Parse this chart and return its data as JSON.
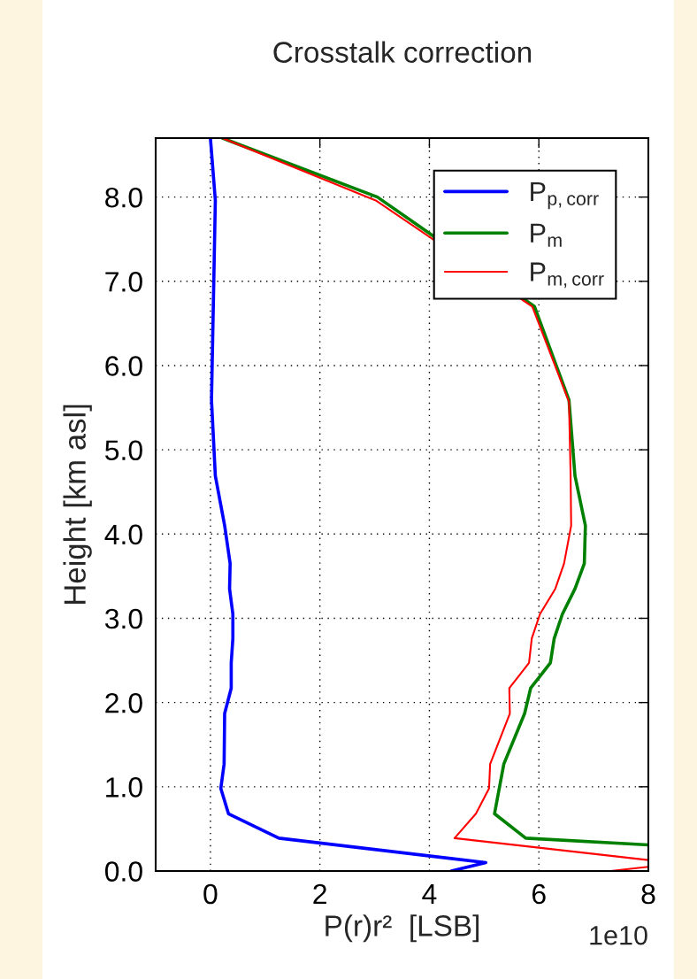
{
  "chart_data": {
    "type": "line",
    "title": "Crosstalk correction",
    "xlabel": "P(r)r²  [LSB]",
    "ylabel": "Height [km asl]",
    "annotations": [
      "1e10"
    ],
    "xlim": [
      -1,
      8
    ],
    "xticks": [
      0,
      2,
      4,
      6,
      8
    ],
    "ylim": [
      0,
      8.7
    ],
    "yticks": [
      {
        "value": 0,
        "label": "0.0"
      },
      {
        "value": 1,
        "label": "1.0"
      },
      {
        "value": 2,
        "label": "2.0"
      },
      {
        "value": 3,
        "label": "3.0"
      },
      {
        "value": 4,
        "label": "4.0"
      },
      {
        "value": 5,
        "label": "5.0"
      },
      {
        "value": 6,
        "label": "6.0"
      },
      {
        "value": 7,
        "label": "7.0"
      },
      {
        "value": 8,
        "label": "8.0"
      }
    ],
    "grid": true,
    "legend": "top right",
    "line_style": "solid",
    "marker": "none",
    "series": [
      {
        "name": "P$_{p,corr}$",
        "color": "#0000ff",
        "x": [
          0.0,
          0.09,
          0.02,
          0.09,
          0.26,
          0.36,
          0.35,
          0.41,
          0.41,
          0.38,
          0.38,
          0.26,
          0.25,
          0.19,
          0.33,
          1.25,
          5.03,
          4.4
        ],
        "values": [
          8.7,
          7.96,
          5.59,
          4.69,
          4.1,
          3.65,
          3.35,
          3.05,
          2.76,
          2.47,
          2.17,
          1.87,
          1.27,
          0.98,
          0.68,
          0.39,
          0.1,
          0.0
        ]
      },
      {
        "name": "P$_{m}$",
        "color": "#008000",
        "x": [
          0.22,
          3.05,
          5.92,
          6.55,
          6.66,
          6.85,
          6.83,
          6.66,
          6.43,
          6.28,
          6.21,
          5.85,
          5.74,
          5.36,
          5.19,
          5.76,
          8.0
        ],
        "values": [
          8.7,
          8.0,
          6.7,
          5.59,
          4.69,
          4.1,
          3.65,
          3.35,
          3.05,
          2.76,
          2.47,
          2.17,
          1.87,
          1.27,
          0.68,
          0.39,
          0.31
        ]
      },
      {
        "name": "P$_{m,corr}$",
        "color": "#ff0000",
        "x": [
          0.22,
          3.02,
          5.88,
          6.55,
          6.58,
          6.59,
          6.46,
          6.3,
          6.02,
          5.87,
          5.82,
          5.46,
          5.47,
          5.11,
          5.09,
          4.85,
          4.46,
          8.0,
          null,
          8.0,
          7.31
        ],
        "values": [
          8.7,
          7.96,
          6.7,
          5.57,
          4.69,
          4.1,
          3.65,
          3.35,
          3.05,
          2.76,
          2.47,
          2.17,
          1.87,
          1.27,
          0.98,
          0.68,
          0.39,
          0.13,
          null,
          0.05,
          0.0
        ]
      }
    ]
  }
}
